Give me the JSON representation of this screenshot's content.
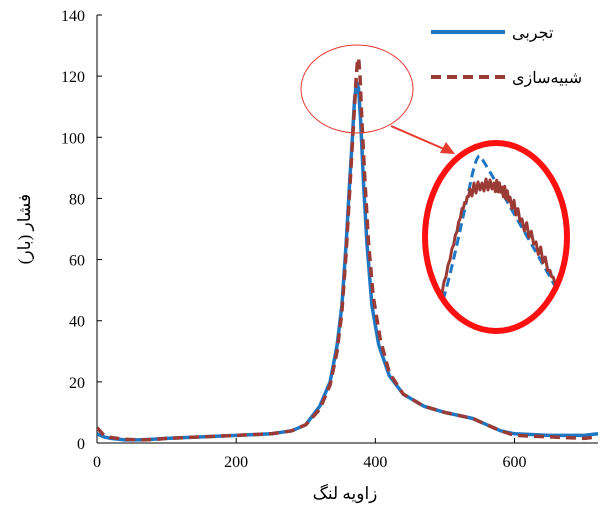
{
  "chart_data": {
    "type": "line",
    "title": "",
    "xlabel": "زاویه لنگ",
    "ylabel": "فشار (بار)",
    "xlim": [
      0,
      720
    ],
    "ylim": [
      0,
      140
    ],
    "xticks": [
      0,
      200,
      400,
      600
    ],
    "yticks": [
      0,
      20,
      40,
      60,
      80,
      100,
      120,
      140
    ],
    "grid": false,
    "legend_position": "top-right",
    "inset": "zoomed view of the pressure peak (circled)",
    "series": [
      {
        "name": "تجربی",
        "color": "#1f77c4",
        "style": "solid",
        "x": [
          0,
          10,
          20,
          40,
          60,
          80,
          100,
          150,
          200,
          250,
          280,
          300,
          320,
          335,
          345,
          352,
          358,
          363,
          367,
          370,
          373,
          376,
          379,
          383,
          388,
          395,
          405,
          420,
          440,
          470,
          500,
          540,
          560,
          580,
          600,
          650,
          700,
          720
        ],
        "y": [
          3,
          2,
          1.5,
          1,
          1,
          1.2,
          1.5,
          2,
          2.5,
          3,
          4,
          6,
          12,
          20,
          32,
          45,
          65,
          85,
          100,
          112,
          118,
          116,
          105,
          85,
          65,
          45,
          32,
          22,
          16,
          12,
          10,
          8,
          6,
          4,
          3,
          2.5,
          2.5,
          3
        ]
      },
      {
        "name": "شبیه‌سازی",
        "color": "#9b3b36",
        "style": "dashed",
        "x": [
          0,
          10,
          20,
          40,
          60,
          80,
          100,
          150,
          200,
          250,
          280,
          300,
          320,
          335,
          345,
          352,
          358,
          363,
          367,
          370,
          372,
          374,
          376,
          378,
          381,
          385,
          390,
          397,
          407,
          420,
          440,
          470,
          500,
          540,
          560,
          580,
          600,
          650,
          700,
          720
        ],
        "y": [
          5,
          2.5,
          1.8,
          1.2,
          1,
          1.1,
          1.5,
          2,
          2.5,
          3,
          4,
          6,
          11,
          19,
          30,
          43,
          62,
          82,
          98,
          110,
          118,
          124,
          126,
          120,
          104,
          86,
          66,
          48,
          34,
          23,
          16,
          12,
          10,
          8,
          6,
          4,
          2.5,
          2,
          1.5,
          2
        ]
      }
    ]
  }
}
